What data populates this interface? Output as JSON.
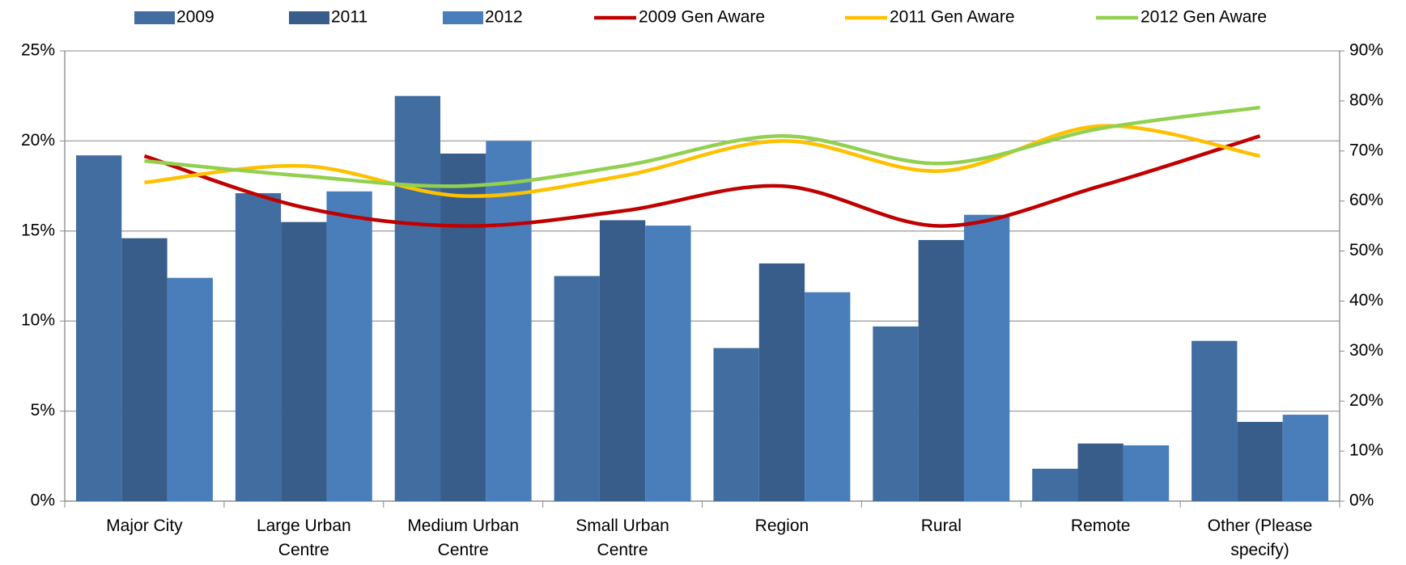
{
  "chart_data": {
    "type": "bar",
    "categories": [
      "Major City",
      "Large Urban Centre",
      "Medium Urban Centre",
      "Small Urban Centre",
      "Region",
      "Rural",
      "Remote",
      "Other (Please specify)"
    ],
    "series": [
      {
        "name": "2009",
        "type": "bar",
        "color": "#426da0",
        "values": [
          19.2,
          17.1,
          22.5,
          12.5,
          8.5,
          9.7,
          1.8,
          8.9
        ]
      },
      {
        "name": "2011",
        "type": "bar",
        "color": "#385d8a",
        "values": [
          14.6,
          15.5,
          19.3,
          15.6,
          13.2,
          14.5,
          3.2,
          4.4
        ]
      },
      {
        "name": "2012",
        "type": "bar",
        "color": "#4a7ebb",
        "values": [
          12.4,
          17.2,
          20.0,
          15.3,
          11.6,
          15.9,
          3.1,
          4.8
        ]
      },
      {
        "name": "2009 Gen Aware",
        "type": "line",
        "axis": "y2",
        "color": "#c00000",
        "values": [
          69,
          58.7,
          55,
          58,
          63,
          55,
          63,
          73
        ]
      },
      {
        "name": "2011 Gen Aware",
        "type": "line",
        "axis": "y2",
        "color": "#ffc000",
        "values": [
          63.7,
          67,
          61,
          65,
          72,
          66,
          75,
          69
        ]
      },
      {
        "name": "2012 Gen Aware",
        "type": "line",
        "axis": "y2",
        "color": "#92d050",
        "values": [
          68,
          65,
          63,
          67,
          73,
          67.5,
          74.5,
          78.7
        ]
      }
    ],
    "ylim": [
      0,
      25
    ],
    "yticks": [
      {
        "value": 0,
        "label": "0%"
      },
      {
        "value": 5,
        "label": "5%"
      },
      {
        "value": 10,
        "label": "10%"
      },
      {
        "value": 15,
        "label": "15%"
      },
      {
        "value": 20,
        "label": "20%"
      },
      {
        "value": 25,
        "label": "25%"
      }
    ],
    "y2lim": [
      0,
      90
    ],
    "y2ticks": [
      {
        "value": 0,
        "label": "0%"
      },
      {
        "value": 10,
        "label": "10%"
      },
      {
        "value": 20,
        "label": "20%"
      },
      {
        "value": 30,
        "label": "30%"
      },
      {
        "value": 40,
        "label": "40%"
      },
      {
        "value": 50,
        "label": "50%"
      },
      {
        "value": 60,
        "label": "60%"
      },
      {
        "value": 70,
        "label": "70%"
      },
      {
        "value": 80,
        "label": "80%"
      },
      {
        "value": 90,
        "label": "90%"
      }
    ],
    "grid": true,
    "legend": "top"
  }
}
